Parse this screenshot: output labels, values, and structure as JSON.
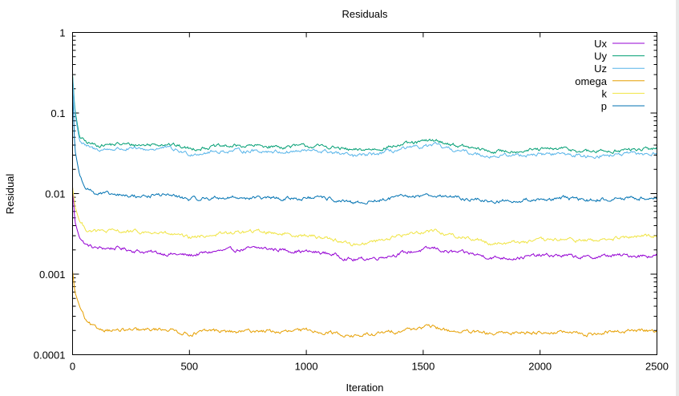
{
  "chart_data": {
    "type": "line",
    "title": "Residuals",
    "xlabel": "Iteration",
    "ylabel": "Residual",
    "xlim": [
      0,
      2500
    ],
    "ylim": [
      0.0001,
      1
    ],
    "yscale": "log",
    "x_ticks": [
      "0",
      "500",
      "1000",
      "1500",
      "2000",
      "2500"
    ],
    "y_ticks": [
      "0.0001",
      "0.001",
      "0.01",
      "0.1",
      "1"
    ],
    "grid": false,
    "legend_position": "top-right",
    "series": [
      {
        "name": "Ux",
        "color": "#9400d3",
        "x": [
          0,
          10,
          30,
          60,
          100,
          200,
          300,
          400,
          500,
          600,
          700,
          800,
          900,
          1000,
          1100,
          1200,
          1300,
          1400,
          1500,
          1550,
          1600,
          1700,
          1800,
          1900,
          2000,
          2100,
          2200,
          2300,
          2400,
          2500
        ],
        "y": [
          0.012,
          0.0045,
          0.0028,
          0.0023,
          0.0021,
          0.0021,
          0.0019,
          0.0018,
          0.0017,
          0.0019,
          0.002,
          0.0021,
          0.002,
          0.0019,
          0.0018,
          0.0015,
          0.0016,
          0.0018,
          0.002,
          0.0021,
          0.0019,
          0.0018,
          0.0016,
          0.0016,
          0.0017,
          0.0017,
          0.0016,
          0.0017,
          0.0017,
          0.0017
        ]
      },
      {
        "name": "Uy",
        "color": "#009e73",
        "x": [
          0,
          10,
          30,
          60,
          100,
          200,
          300,
          400,
          500,
          600,
          700,
          800,
          900,
          1000,
          1100,
          1200,
          1300,
          1400,
          1500,
          1550,
          1600,
          1700,
          1800,
          1900,
          2000,
          2100,
          2200,
          2300,
          2400,
          2500
        ],
        "y": [
          0.3,
          0.11,
          0.05,
          0.043,
          0.04,
          0.041,
          0.04,
          0.042,
          0.036,
          0.038,
          0.039,
          0.039,
          0.038,
          0.039,
          0.038,
          0.034,
          0.036,
          0.04,
          0.044,
          0.046,
          0.042,
          0.037,
          0.033,
          0.034,
          0.035,
          0.036,
          0.033,
          0.034,
          0.035,
          0.036
        ]
      },
      {
        "name": "Uz",
        "color": "#56b4e9",
        "x": [
          0,
          10,
          30,
          60,
          100,
          200,
          300,
          400,
          500,
          600,
          700,
          800,
          900,
          1000,
          1100,
          1200,
          1300,
          1400,
          1500,
          1550,
          1600,
          1700,
          1800,
          1900,
          2000,
          2100,
          2200,
          2300,
          2400,
          2500
        ],
        "y": [
          0.28,
          0.1,
          0.045,
          0.038,
          0.035,
          0.036,
          0.035,
          0.037,
          0.031,
          0.033,
          0.034,
          0.034,
          0.033,
          0.034,
          0.033,
          0.029,
          0.031,
          0.035,
          0.038,
          0.04,
          0.036,
          0.032,
          0.029,
          0.03,
          0.031,
          0.031,
          0.029,
          0.03,
          0.031,
          0.031
        ]
      },
      {
        "name": "omega",
        "color": "#e69f00",
        "x": [
          0,
          10,
          30,
          60,
          100,
          200,
          300,
          400,
          500,
          600,
          700,
          800,
          900,
          1000,
          1100,
          1200,
          1300,
          1400,
          1500,
          1550,
          1600,
          1700,
          1800,
          1900,
          2000,
          2100,
          2200,
          2300,
          2400,
          2500
        ],
        "y": [
          0.0011,
          0.0006,
          0.0004,
          0.00025,
          0.00021,
          0.0002,
          0.0002,
          0.00021,
          0.00018,
          0.0002,
          0.00019,
          0.0002,
          0.00019,
          0.0002,
          0.00019,
          0.00017,
          0.00018,
          0.0002,
          0.00022,
          0.00022,
          0.0002,
          0.00019,
          0.00018,
          0.00019,
          0.00019,
          0.00019,
          0.00018,
          0.00019,
          0.0002,
          0.0002
        ]
      },
      {
        "name": "k",
        "color": "#f0e442",
        "x": [
          0,
          10,
          30,
          60,
          100,
          200,
          300,
          400,
          500,
          600,
          700,
          800,
          900,
          1000,
          1100,
          1200,
          1300,
          1400,
          1500,
          1550,
          1600,
          1700,
          1800,
          1900,
          2000,
          2100,
          2200,
          2300,
          2400,
          2500
        ],
        "y": [
          0.012,
          0.007,
          0.0045,
          0.0036,
          0.0034,
          0.0034,
          0.0033,
          0.0032,
          0.0028,
          0.0031,
          0.0033,
          0.0034,
          0.0032,
          0.003,
          0.0028,
          0.0023,
          0.0026,
          0.003,
          0.0034,
          0.0035,
          0.0031,
          0.0028,
          0.0024,
          0.0025,
          0.0026,
          0.0027,
          0.0026,
          0.0027,
          0.0029,
          0.003
        ]
      },
      {
        "name": "p",
        "color": "#0072b2",
        "x": [
          0,
          10,
          30,
          60,
          100,
          200,
          300,
          400,
          500,
          600,
          700,
          800,
          900,
          1000,
          1100,
          1200,
          1300,
          1400,
          1500,
          1550,
          1600,
          1700,
          1800,
          1900,
          2000,
          2100,
          2200,
          2300,
          2400,
          2500
        ],
        "y": [
          0.2,
          0.035,
          0.017,
          0.012,
          0.01,
          0.0095,
          0.0092,
          0.0098,
          0.0085,
          0.0088,
          0.009,
          0.0088,
          0.0086,
          0.0088,
          0.0086,
          0.0075,
          0.0082,
          0.009,
          0.0095,
          0.0097,
          0.0092,
          0.0085,
          0.008,
          0.0082,
          0.0085,
          0.0087,
          0.0083,
          0.0085,
          0.0088,
          0.009
        ]
      }
    ]
  }
}
